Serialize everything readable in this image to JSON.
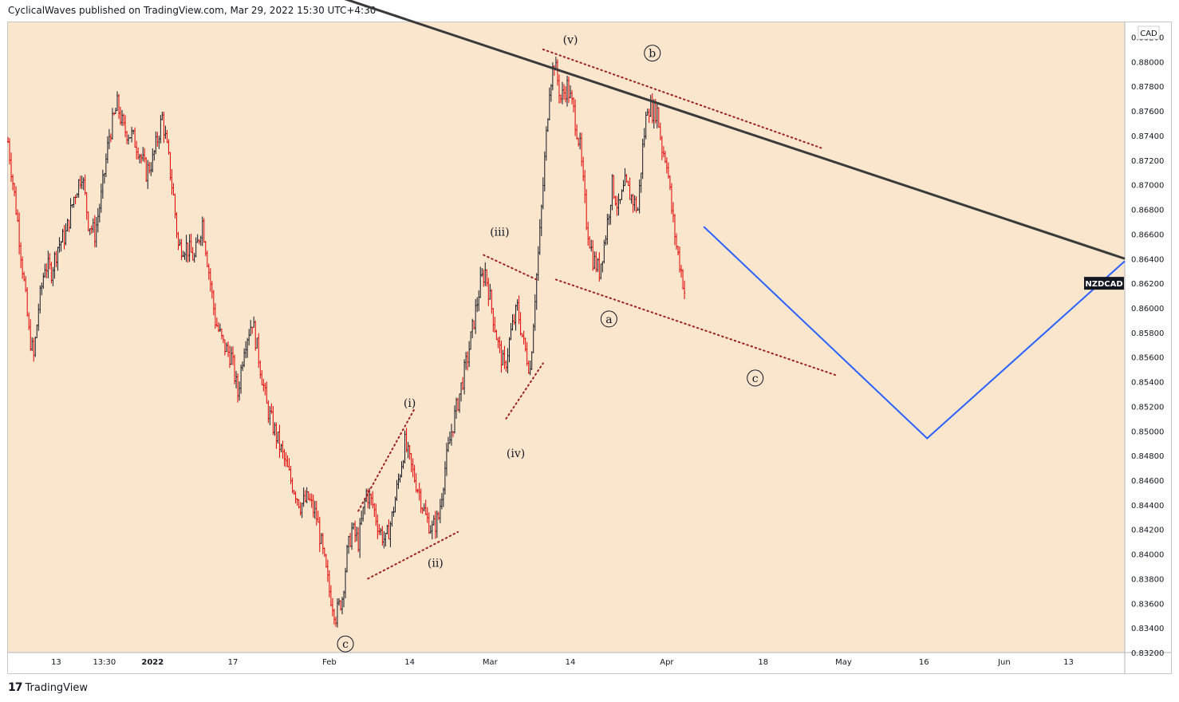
{
  "header": {
    "publisher_line": "CyclicalWaves published on TradingView.com, Mar 29, 2022 15:30 UTC+4:30"
  },
  "footer": {
    "brand": "TradingView",
    "logo_glyph": "17"
  },
  "colors": {
    "background": "#fae5cd",
    "bull": "#131722",
    "bear": "#e00000",
    "trendline": "#3a3a3a",
    "channel": "#9c1f1f",
    "projection": "#2962ff"
  },
  "chart_data": {
    "type": "candlestick",
    "symbol": "NZDCAD",
    "currency": "CAD",
    "ylim": [
      0.832,
      0.8832
    ],
    "y_ticks": [
      "0.88200",
      "0.88000",
      "0.87800",
      "0.87600",
      "0.87400",
      "0.87200",
      "0.87000",
      "0.86800",
      "0.86600",
      "0.86400",
      "0.86200",
      "0.86000",
      "0.85800",
      "0.85600",
      "0.85400",
      "0.85200",
      "0.85000",
      "0.84800",
      "0.84600",
      "0.84400",
      "0.84200",
      "0.84000",
      "0.83800",
      "0.83600",
      "0.83400",
      "0.83200"
    ],
    "x_ticks": [
      {
        "label": "13",
        "x": 3
      },
      {
        "label": "13:30",
        "x": 6
      },
      {
        "label": "2022",
        "x": 9
      },
      {
        "label": "17",
        "x": 14
      },
      {
        "label": "Feb",
        "x": 20
      },
      {
        "label": "14",
        "x": 25
      },
      {
        "label": "Mar",
        "x": 30
      },
      {
        "label": "14",
        "x": 35
      },
      {
        "label": "Apr",
        "x": 41
      },
      {
        "label": "18",
        "x": 47
      },
      {
        "label": "May",
        "x": 52
      },
      {
        "label": "16",
        "x": 57
      },
      {
        "label": "Jun",
        "x": 62
      },
      {
        "label": "13",
        "x": 66
      }
    ],
    "xlim": [
      0,
      69.5
    ],
    "price_path": [
      [
        0.0,
        0.8735
      ],
      [
        0.6,
        0.867
      ],
      [
        1.0,
        0.862
      ],
      [
        1.3,
        0.858
      ],
      [
        1.6,
        0.856
      ],
      [
        1.9,
        0.86
      ],
      [
        2.3,
        0.8635
      ],
      [
        2.7,
        0.863
      ],
      [
        3.1,
        0.865
      ],
      [
        3.6,
        0.866
      ],
      [
        4.1,
        0.869
      ],
      [
        4.6,
        0.871
      ],
      [
        5.0,
        0.867
      ],
      [
        5.4,
        0.866
      ],
      [
        5.8,
        0.869
      ],
      [
        6.3,
        0.874
      ],
      [
        6.8,
        0.8765
      ],
      [
        7.2,
        0.8745
      ],
      [
        7.7,
        0.874
      ],
      [
        8.1,
        0.873
      ],
      [
        8.6,
        0.871
      ],
      [
        9.0,
        0.872
      ],
      [
        9.6,
        0.8755
      ],
      [
        10.0,
        0.872
      ],
      [
        10.3,
        0.869
      ],
      [
        10.6,
        0.865
      ],
      [
        11.1,
        0.865
      ],
      [
        11.6,
        0.864
      ],
      [
        12.1,
        0.867
      ],
      [
        12.5,
        0.863
      ],
      [
        12.9,
        0.859
      ],
      [
        13.4,
        0.857
      ],
      [
        13.9,
        0.856
      ],
      [
        14.3,
        0.853
      ],
      [
        14.7,
        0.857
      ],
      [
        15.2,
        0.859
      ],
      [
        15.6,
        0.856
      ],
      [
        16.1,
        0.852
      ],
      [
        16.6,
        0.85
      ],
      [
        17.1,
        0.848
      ],
      [
        17.6,
        0.846
      ],
      [
        18.2,
        0.844
      ],
      [
        18.7,
        0.8445
      ],
      [
        19.2,
        0.843
      ],
      [
        19.6,
        0.84
      ],
      [
        20.0,
        0.837
      ],
      [
        20.4,
        0.835
      ],
      [
        20.8,
        0.8365
      ],
      [
        21.1,
        0.84
      ],
      [
        21.4,
        0.842
      ],
      [
        21.8,
        0.841
      ],
      [
        22.3,
        0.845
      ],
      [
        22.7,
        0.844
      ],
      [
        23.1,
        0.842
      ],
      [
        23.5,
        0.841
      ],
      [
        23.9,
        0.843
      ],
      [
        24.3,
        0.846
      ],
      [
        24.7,
        0.849
      ],
      [
        25.1,
        0.847
      ],
      [
        25.6,
        0.845
      ],
      [
        26.0,
        0.843
      ],
      [
        26.4,
        0.842
      ],
      [
        26.8,
        0.843
      ],
      [
        27.2,
        0.847
      ],
      [
        27.6,
        0.85
      ],
      [
        28.1,
        0.853
      ],
      [
        28.6,
        0.856
      ],
      [
        29.0,
        0.859
      ],
      [
        29.4,
        0.862
      ],
      [
        29.7,
        0.863
      ],
      [
        30.1,
        0.86
      ],
      [
        30.5,
        0.857
      ],
      [
        30.9,
        0.855
      ],
      [
        31.3,
        0.858
      ],
      [
        31.7,
        0.86
      ],
      [
        32.1,
        0.857
      ],
      [
        32.5,
        0.855
      ],
      [
        32.8,
        0.861
      ],
      [
        33.1,
        0.866
      ],
      [
        33.4,
        0.872
      ],
      [
        33.7,
        0.878
      ],
      [
        34.0,
        0.88
      ],
      [
        34.4,
        0.877
      ],
      [
        34.8,
        0.878
      ],
      [
        35.2,
        0.876
      ],
      [
        35.6,
        0.873
      ],
      [
        36.0,
        0.867
      ],
      [
        36.4,
        0.864
      ],
      [
        36.8,
        0.863
      ],
      [
        37.2,
        0.866
      ],
      [
        37.6,
        0.87
      ],
      [
        38.0,
        0.868
      ],
      [
        38.4,
        0.87
      ],
      [
        38.8,
        0.869
      ],
      [
        39.2,
        0.868
      ],
      [
        39.5,
        0.873
      ],
      [
        39.8,
        0.8765
      ],
      [
        40.1,
        0.876
      ],
      [
        40.4,
        0.876
      ],
      [
        40.7,
        0.873
      ],
      [
        41.0,
        0.872
      ],
      [
        41.3,
        0.868
      ],
      [
        41.6,
        0.865
      ],
      [
        41.9,
        0.863
      ],
      [
        42.2,
        0.8605
      ]
    ],
    "trendline": [
      [
        20.5,
        0.8853
      ],
      [
        69.5,
        0.864
      ]
    ],
    "channels": [
      [
        [
          33.3,
          0.881
        ],
        [
          50.6,
          0.873
        ]
      ],
      [
        [
          34.1,
          0.8623
        ],
        [
          51.6,
          0.8545
        ]
      ],
      [
        [
          29.6,
          0.8643
        ],
        [
          32.9,
          0.8623
        ]
      ],
      [
        [
          31.0,
          0.851
        ],
        [
          33.3,
          0.8555
        ]
      ],
      [
        [
          21.8,
          0.8435
        ],
        [
          25.3,
          0.8518
        ]
      ],
      [
        [
          22.4,
          0.838
        ],
        [
          28.0,
          0.8418
        ]
      ]
    ],
    "projection": [
      [
        43.3,
        0.8666
      ],
      [
        57.2,
        0.8494
      ],
      [
        69.5,
        0.8638
      ]
    ],
    "current_price": 0.862,
    "annotations": [
      {
        "text": "(v)",
        "x": 35.0,
        "y": 0.8818,
        "circled": false
      },
      {
        "text": "b",
        "x": 40.1,
        "y": 0.8807,
        "circled": true
      },
      {
        "text": "(iii)",
        "x": 30.6,
        "y": 0.8662,
        "circled": false
      },
      {
        "text": "a",
        "x": 37.4,
        "y": 0.8591,
        "circled": true
      },
      {
        "text": "c",
        "x": 46.5,
        "y": 0.8543,
        "circled": true
      },
      {
        "text": "(i)",
        "x": 25.0,
        "y": 0.8523,
        "circled": false
      },
      {
        "text": "(iv)",
        "x": 31.6,
        "y": 0.8482,
        "circled": false
      },
      {
        "text": "(ii)",
        "x": 26.6,
        "y": 0.8393,
        "circled": false
      },
      {
        "text": "c",
        "x": 21.0,
        "y": 0.8327,
        "circled": true
      }
    ]
  }
}
